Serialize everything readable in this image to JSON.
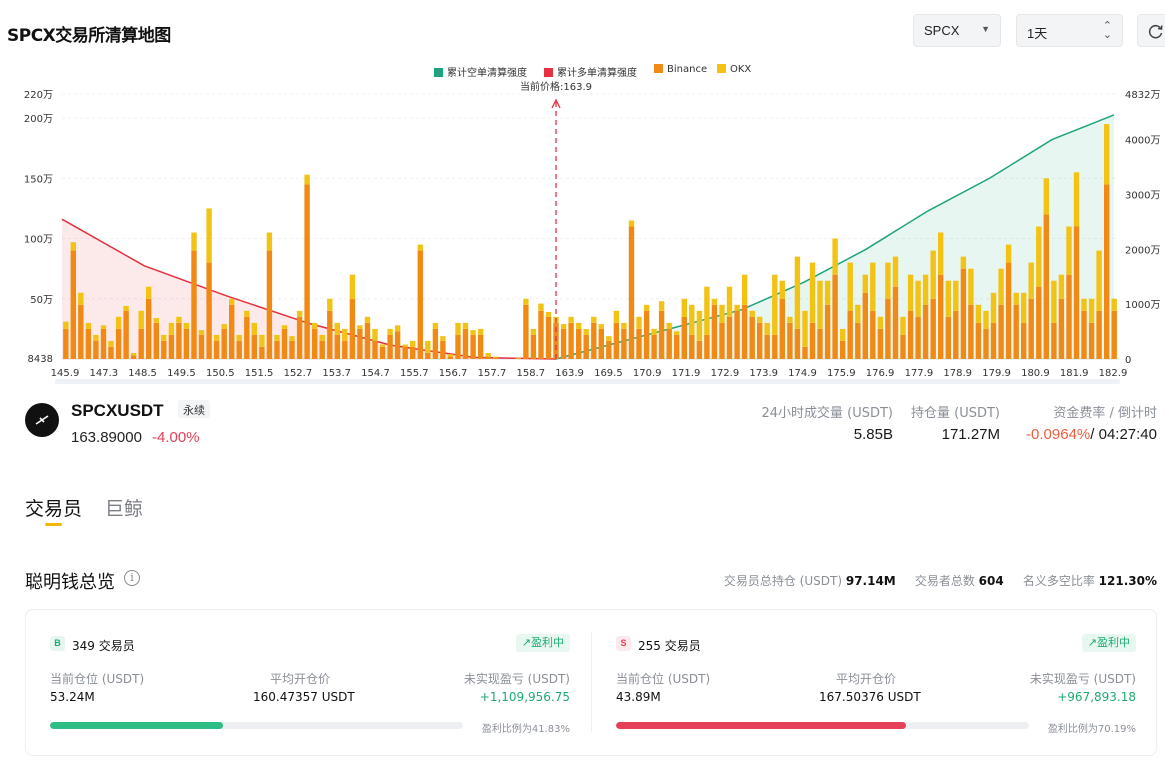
{
  "page": {
    "title": "SPCX交易所清算地图"
  },
  "controls": {
    "symbol_select": "SPCX",
    "period_select": "1天"
  },
  "legend": [
    {
      "label": "累计空单清算强度",
      "color": "#1fa37e"
    },
    {
      "label": "累计多单清算强度",
      "color": "#e6303f"
    },
    {
      "label": "Binance",
      "color": "#f08a14"
    },
    {
      "label": "OKX",
      "color": "#f2c315"
    }
  ],
  "chart_data": {
    "type": "bar",
    "current_price_label": "当前价格:163.9",
    "current_price": 163.9,
    "left_axis": {
      "ticks": [
        "8438",
        "50万",
        "100万",
        "150万",
        "200万",
        "220万"
      ],
      "values": [
        8438,
        500000,
        1000000,
        1500000,
        2000000,
        2200000
      ],
      "range": [
        0,
        2200000
      ]
    },
    "right_axis": {
      "ticks": [
        "0",
        "1000万",
        "2000万",
        "3000万",
        "4000万",
        "4832万"
      ],
      "values": [
        0,
        10000000,
        20000000,
        30000000,
        40000000,
        48320000
      ],
      "range": [
        0,
        48320000
      ]
    },
    "x_tick_labels": [
      "145.9",
      "147.3",
      "148.5",
      "149.5",
      "150.5",
      "151.5",
      "152.7",
      "153.7",
      "154.7",
      "155.7",
      "156.7",
      "157.7",
      "158.7",
      "163.9",
      "169.5",
      "170.9",
      "171.9",
      "172.9",
      "173.9",
      "174.9",
      "175.9",
      "176.9",
      "177.9",
      "178.9",
      "179.9",
      "180.9",
      "181.9",
      "182.9"
    ],
    "series": [
      {
        "name": "Binance",
        "values": [
          250000,
          900000,
          450000,
          250000,
          150000,
          250000,
          100000,
          250000,
          400000,
          30000,
          250000,
          500000,
          300000,
          150000,
          200000,
          300000,
          250000,
          900000,
          200000,
          800000,
          150000,
          250000,
          450000,
          150000,
          350000,
          200000,
          100000,
          900000,
          150000,
          250000,
          150000,
          350000,
          1450000,
          250000,
          150000,
          400000,
          200000,
          150000,
          500000,
          250000,
          300000,
          150000,
          100000,
          200000,
          230000,
          100000,
          100000,
          900000,
          50000,
          250000,
          150000,
          20000,
          200000,
          250000,
          200000,
          200000,
          20000,
          10000,
          0,
          0,
          5000,
          450000,
          200000,
          400000,
          350000,
          300000,
          250000,
          300000,
          250000,
          200000,
          300000,
          250000,
          150000,
          300000,
          250000,
          1100000,
          250000,
          400000,
          200000,
          400000,
          250000,
          200000,
          350000,
          200000,
          150000,
          200000,
          450000,
          300000,
          350000,
          400000,
          450000,
          350000,
          300000,
          200000,
          200000,
          500000,
          300000,
          250000,
          100000,
          300000,
          250000,
          450000,
          700000,
          150000,
          400000,
          300000,
          550000,
          400000,
          250000,
          500000,
          600000,
          200000,
          400000,
          350000,
          450000,
          500000,
          700000,
          350000,
          400000,
          750000,
          450000,
          300000,
          250000,
          300000,
          450000,
          800000,
          450000,
          300000,
          500000,
          600000,
          1200000,
          300000,
          500000,
          700000,
          1100000,
          400000,
          300000,
          400000,
          1450000,
          400000
        ],
        "okx": [
          60000,
          70000,
          100000,
          50000,
          50000,
          30000,
          50000,
          100000,
          40000,
          20000,
          150000,
          100000,
          40000,
          50000,
          100000,
          50000,
          50000,
          150000,
          40000,
          450000,
          50000,
          40000,
          50000,
          50000,
          50000,
          100000,
          100000,
          150000,
          50000,
          30000,
          40000,
          50000,
          80000,
          50000,
          50000,
          100000,
          100000,
          100000,
          200000,
          30000,
          50000,
          100000,
          20000,
          50000,
          50000,
          20000,
          50000,
          50000,
          100000,
          50000,
          40000,
          20000,
          100000,
          50000,
          40000,
          50000,
          30000,
          10000,
          0,
          0,
          5000,
          50000,
          50000,
          60000,
          40000,
          50000,
          40000,
          50000,
          50000,
          50000,
          50000,
          40000,
          40000,
          100000,
          50000,
          50000,
          100000,
          50000,
          50000,
          80000,
          50000,
          30000,
          150000,
          250000,
          250000,
          400000,
          50000,
          150000,
          250000,
          50000,
          250000,
          50000,
          50000,
          100000,
          500000,
          150000,
          50000,
          600000,
          300000,
          500000,
          400000,
          200000,
          300000,
          100000,
          400000,
          150000,
          150000,
          400000,
          100000,
          300000,
          250000,
          150000,
          300000,
          300000,
          250000,
          400000,
          350000,
          300000,
          250000,
          100000,
          300000,
          150000,
          150000,
          250000,
          300000,
          150000,
          100000,
          250000,
          300000,
          500000,
          300000,
          350000,
          200000,
          400000,
          450000,
          100000,
          200000,
          500000,
          500000,
          100000
        ]
      },
      {
        "name": "累计多单清算强度",
        "values": [
          25500000,
          17000000,
          11500000,
          6500000,
          2500000,
          300000,
          0
        ]
      },
      {
        "name": "累计空单清算强度",
        "values": [
          0,
          3000000,
          6000000,
          9000000,
          14000000,
          20000000,
          27000000,
          33000000,
          40000000,
          44500000
        ]
      }
    ]
  },
  "ticker": {
    "symbol": "SPCXUSDT",
    "type_badge": "永续",
    "last_price": "163.89000",
    "change": "-4.00%",
    "stats": [
      {
        "label": "24小时成交量 (USDT)",
        "value": "5.85B"
      },
      {
        "label": "持仓量 (USDT)",
        "value": "171.27M"
      },
      {
        "label": "资金费率 / 倒计时",
        "value": "-0.0964%",
        "countdown": "/ 04:27:40"
      }
    ]
  },
  "tabs": [
    {
      "label": "交易员"
    },
    {
      "label": "巨鲸"
    }
  ],
  "overview": {
    "title": "聪明钱总览",
    "stats": [
      {
        "label": "交易员总持仓 (USDT)",
        "value": "97.14M"
      },
      {
        "label": "交易者总数",
        "value": "604"
      },
      {
        "label": "名义多空比率",
        "value": "121.30%"
      }
    ]
  },
  "long_side": {
    "badge": "B",
    "count": "349 交易员",
    "status": "盈利中",
    "position_label": "当前仓位 (USDT)",
    "position_value": "53.24M",
    "avg_label": "平均开仓价",
    "avg_value": "160.47357 USDT",
    "pnl_label": "未实现盈亏 (USDT)",
    "pnl_value": "+1,109,956.75",
    "ratio_label": "盈利比例为41.83%",
    "ratio": 0.4183
  },
  "short_side": {
    "badge": "S",
    "count": "255 交易员",
    "status": "盈利中",
    "position_label": "当前仓位 (USDT)",
    "position_value": "43.89M",
    "avg_label": "平均开仓价",
    "avg_value": "167.50376 USDT",
    "pnl_label": "未实现盈亏 (USDT)",
    "pnl_value": "+967,893.18",
    "ratio_label": "盈利比例为70.19%",
    "ratio": 0.7019
  },
  "colors": {
    "binance": "#f08a14",
    "okx": "#f2c315",
    "long_curve": "#e6303f",
    "short_curve": "#1fa37e",
    "green": "#1eaa72",
    "red": "#e64056"
  }
}
